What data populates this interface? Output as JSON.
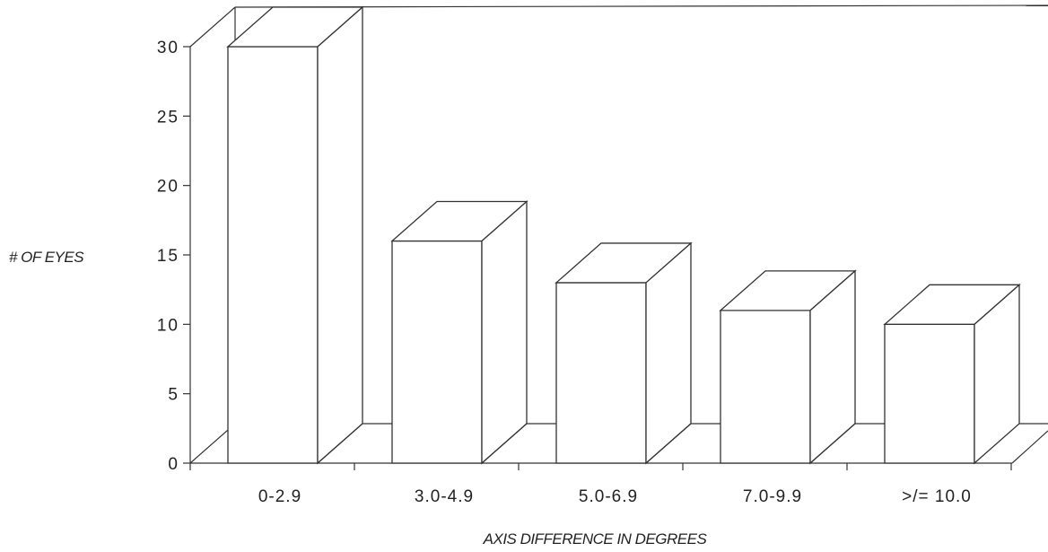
{
  "chart_data": {
    "type": "bar",
    "style": "3d",
    "xlabel": "AXIS DIFFERENCE IN DEGREES",
    "ylabel": "# OF EYES",
    "ylim": [
      0,
      30
    ],
    "yticks": [
      "0",
      "5",
      "10",
      "15",
      "20",
      "25",
      "30"
    ],
    "categories": [
      "0-2.9",
      "3.0-4.9",
      "5.0-6.9",
      "7.0-9.9",
      ">/=  10.0"
    ],
    "values": [
      30,
      16,
      13,
      11,
      10
    ],
    "grid": false,
    "legend": "none"
  }
}
